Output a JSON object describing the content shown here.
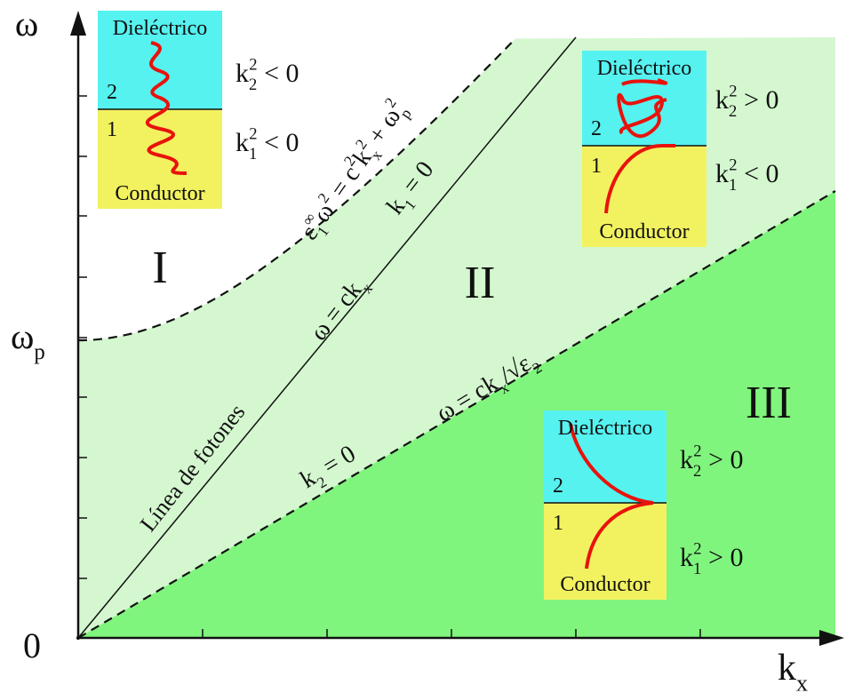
{
  "axes": {
    "y_label": "ω",
    "x_label": [
      {
        "text": "k",
        "pos": "base"
      },
      {
        "text": "x",
        "pos": "sub"
      }
    ],
    "wp_label": [
      {
        "text": "ω",
        "pos": "base"
      },
      {
        "text": "p",
        "pos": "sub"
      }
    ],
    "origin": "0"
  },
  "regions": [
    "I",
    "II",
    "III"
  ],
  "line_labels": {
    "plasma_curve": [
      {
        "text": "ε",
        "pos": "base"
      },
      {
        "text": "1",
        "pos": "sub"
      },
      {
        "text": "∞",
        "pos": "sup"
      },
      {
        "text": "ω",
        "pos": "base"
      },
      {
        "text": "2",
        "pos": "sup"
      },
      {
        "text": " = c",
        "pos": "base"
      },
      {
        "text": "2",
        "pos": "sup"
      },
      {
        "text": "k",
        "pos": "base"
      },
      {
        "text": "x",
        "pos": "sub"
      },
      {
        "text": "2",
        "pos": "sup"
      },
      {
        "text": " + ω",
        "pos": "base"
      },
      {
        "text": "p",
        "pos": "sub"
      },
      {
        "text": "2",
        "pos": "sup"
      }
    ],
    "k1_zero": [
      {
        "text": "k",
        "pos": "base"
      },
      {
        "text": "1",
        "pos": "sub"
      },
      {
        "text": " = 0",
        "pos": "base"
      }
    ],
    "photon_eq": [
      {
        "text": "ω = ck",
        "pos": "base"
      },
      {
        "text": "x",
        "pos": "sub"
      }
    ],
    "photon_name": [
      {
        "text": "Línea de fotones",
        "pos": "base"
      }
    ],
    "k2_zero": [
      {
        "text": "k",
        "pos": "base"
      },
      {
        "text": "2",
        "pos": "sub"
      },
      {
        "text": " = 0",
        "pos": "base"
      }
    ],
    "light_eq": [
      {
        "text": "ω = ck",
        "pos": "base"
      },
      {
        "text": "x",
        "pos": "sub"
      },
      {
        "text": "/√ε",
        "pos": "base"
      },
      {
        "text": "2",
        "pos": "sub"
      }
    ]
  },
  "insets": [
    {
      "top": "Dieléctrico",
      "bottom": "Conductor",
      "n2": "2",
      "n1": "1",
      "k2": [
        {
          "text": "k",
          "pos": "base"
        },
        {
          "text": "2",
          "pos": "sub"
        },
        {
          "text": "2",
          "pos": "sup"
        },
        {
          "text": " < 0",
          "pos": "base"
        }
      ],
      "k1": [
        {
          "text": "k",
          "pos": "base"
        },
        {
          "text": "1",
          "pos": "sub"
        },
        {
          "text": "2",
          "pos": "sup"
        },
        {
          "text": " < 0",
          "pos": "base"
        }
      ]
    },
    {
      "top": "Dieléctrico",
      "bottom": "Conductor",
      "n2": "2",
      "n1": "1",
      "k2": [
        {
          "text": "k",
          "pos": "base"
        },
        {
          "text": "2",
          "pos": "sub"
        },
        {
          "text": "2",
          "pos": "sup"
        },
        {
          "text": " > 0",
          "pos": "base"
        }
      ],
      "k1": [
        {
          "text": "k",
          "pos": "base"
        },
        {
          "text": "1",
          "pos": "sub"
        },
        {
          "text": "2",
          "pos": "sup"
        },
        {
          "text": " < 0",
          "pos": "base"
        }
      ]
    },
    {
      "top": "Dieléctrico",
      "bottom": "Conductor",
      "n2": "2",
      "n1": "1",
      "k2": [
        {
          "text": "k",
          "pos": "base"
        },
        {
          "text": "2",
          "pos": "sub"
        },
        {
          "text": "2",
          "pos": "sup"
        },
        {
          "text": " > 0",
          "pos": "base"
        }
      ],
      "k1": [
        {
          "text": "k",
          "pos": "base"
        },
        {
          "text": "1",
          "pos": "sub"
        },
        {
          "text": "2",
          "pos": "sup"
        },
        {
          "text": " > 0",
          "pos": "base"
        }
      ]
    }
  ]
}
